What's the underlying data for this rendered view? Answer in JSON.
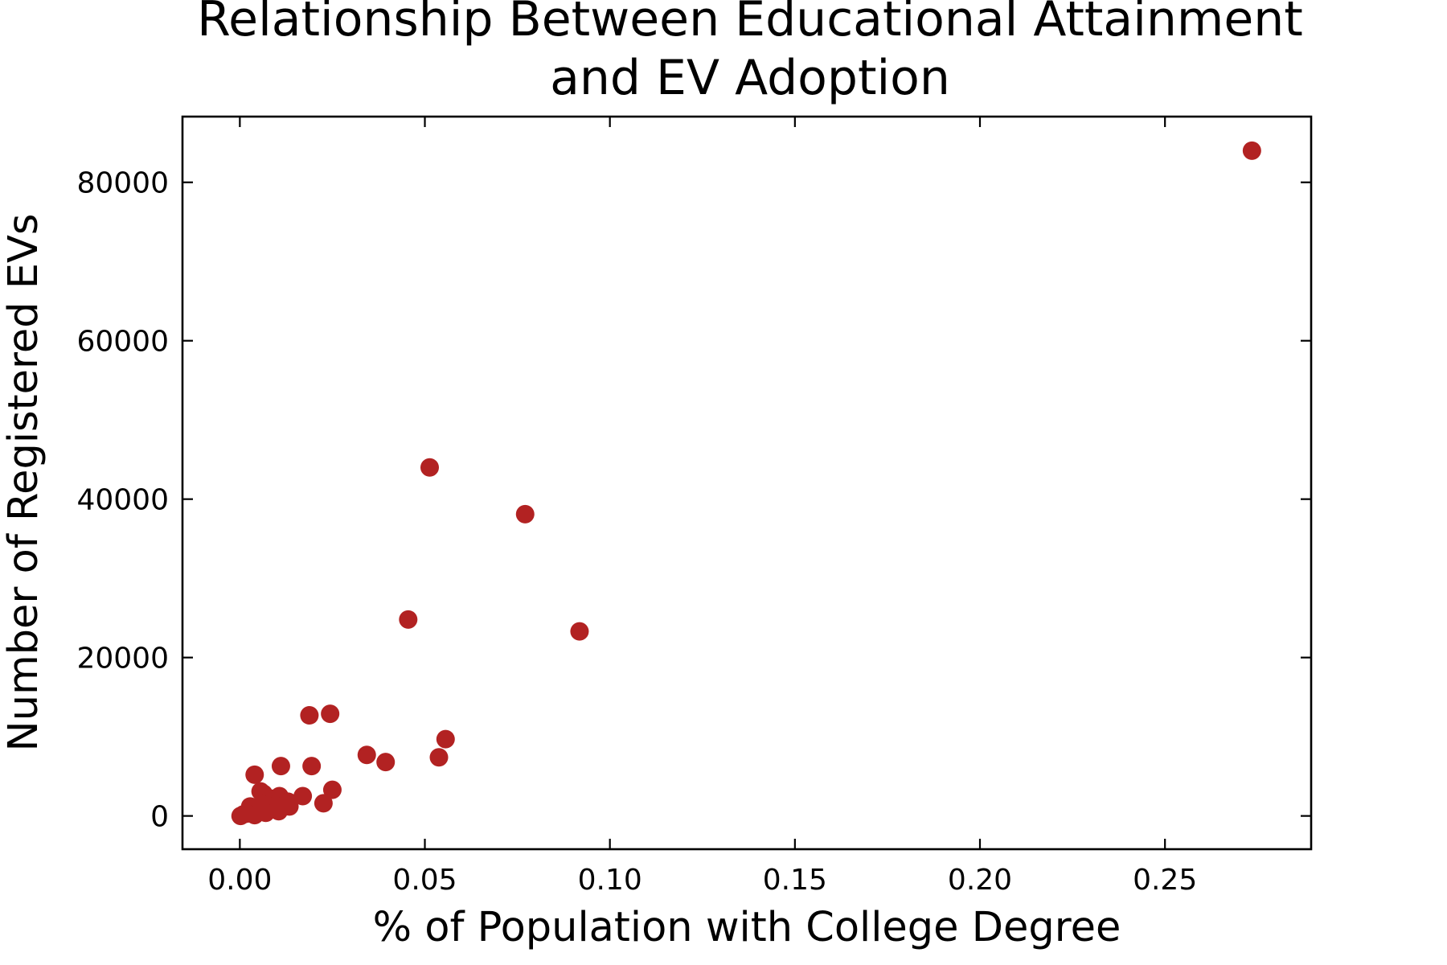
{
  "chart_data": {
    "type": "scatter",
    "title_lines": [
      "Relationship Between Educational Attainment",
      "and EV Adoption"
    ],
    "xlabel": "% of Population with College Degree",
    "ylabel": "Number of Registered EVs",
    "xlim": [
      -0.0155,
      0.2895
    ],
    "ylim": [
      -4200,
      88300
    ],
    "x_ticks": [
      0.0,
      0.05,
      0.1,
      0.15,
      0.2,
      0.25
    ],
    "x_tick_labels": [
      "0.00",
      "0.05",
      "0.10",
      "0.15",
      "0.20",
      "0.25"
    ],
    "y_ticks": [
      0,
      20000,
      40000,
      60000,
      80000
    ],
    "y_tick_labels": [
      "0",
      "20000",
      "40000",
      "60000",
      "80000"
    ],
    "grid": false,
    "legend": "none",
    "marker_color": "#b22222",
    "points": [
      {
        "x": 0.2735,
        "y": 84000
      },
      {
        "x": 0.0513,
        "y": 44000
      },
      {
        "x": 0.0771,
        "y": 38100
      },
      {
        "x": 0.0455,
        "y": 24800
      },
      {
        "x": 0.0918,
        "y": 23300
      },
      {
        "x": 0.0244,
        "y": 12900
      },
      {
        "x": 0.0188,
        "y": 12700
      },
      {
        "x": 0.0556,
        "y": 9700
      },
      {
        "x": 0.0343,
        "y": 7700
      },
      {
        "x": 0.0538,
        "y": 7400
      },
      {
        "x": 0.0394,
        "y": 6800
      },
      {
        "x": 0.0111,
        "y": 6300
      },
      {
        "x": 0.0194,
        "y": 6300
      },
      {
        "x": 0.004,
        "y": 5200
      },
      {
        "x": 0.025,
        "y": 3300
      },
      {
        "x": 0.0056,
        "y": 3100
      },
      {
        "x": 0.0064,
        "y": 2800
      },
      {
        "x": 0.0107,
        "y": 2500
      },
      {
        "x": 0.017,
        "y": 2500
      },
      {
        "x": 0.0083,
        "y": 2200
      },
      {
        "x": 0.013,
        "y": 1800
      },
      {
        "x": 0.0226,
        "y": 1600
      },
      {
        "x": 0.006,
        "y": 1500
      },
      {
        "x": 0.0095,
        "y": 1300
      },
      {
        "x": 0.0028,
        "y": 1200
      },
      {
        "x": 0.0134,
        "y": 1200
      },
      {
        "x": 0.0075,
        "y": 900
      },
      {
        "x": 0.0105,
        "y": 600
      },
      {
        "x": 0.0046,
        "y": 500
      },
      {
        "x": 0.007,
        "y": 400
      },
      {
        "x": 0.002,
        "y": 300
      },
      {
        "x": 0.001,
        "y": 200
      },
      {
        "x": 0.004,
        "y": 100
      },
      {
        "x": 0.0002,
        "y": 0
      }
    ]
  }
}
